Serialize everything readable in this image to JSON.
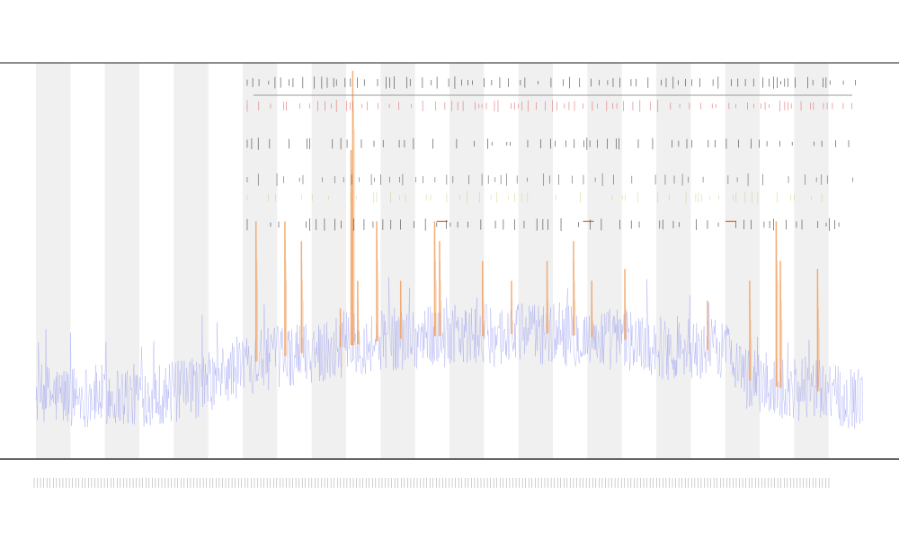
{
  "chart_data": {
    "type": "line",
    "title": "",
    "subtitle_lines": [
      "",
      ""
    ],
    "xlabel": "",
    "ylabel": "",
    "xlim": [
      0,
      1000
    ],
    "ylim": [
      0,
      100
    ],
    "grid": false,
    "legend": "top-left",
    "band_count": 12,
    "series": [
      {
        "role": "background-signal",
        "color": "#8a8ff0",
        "baseline": [
          [
            0,
            16
          ],
          [
            60,
            16
          ],
          [
            120,
            16
          ],
          [
            180,
            17
          ],
          [
            220,
            20
          ],
          [
            250,
            24
          ],
          [
            300,
            26
          ],
          [
            360,
            28
          ],
          [
            420,
            30
          ],
          [
            480,
            31
          ],
          [
            540,
            31
          ],
          [
            600,
            32
          ],
          [
            660,
            31
          ],
          [
            720,
            30
          ],
          [
            760,
            28
          ],
          [
            790,
            27
          ],
          [
            830,
            28
          ],
          [
            845,
            26
          ],
          [
            860,
            20
          ],
          [
            900,
            18
          ],
          [
            950,
            17
          ],
          [
            1000,
            15
          ]
        ],
        "noise": 8
      },
      {
        "role": "spikes",
        "color": "#f0a060",
        "peaks": [
          [
            266,
            60
          ],
          [
            301,
            60
          ],
          [
            321,
            55
          ],
          [
            368,
            38
          ],
          [
            381,
            78
          ],
          [
            383,
            98
          ],
          [
            389,
            45
          ],
          [
            412,
            60
          ],
          [
            441,
            45
          ],
          [
            482,
            60
          ],
          [
            488,
            55
          ],
          [
            540,
            50
          ],
          [
            575,
            45
          ],
          [
            618,
            50
          ],
          [
            650,
            55
          ],
          [
            672,
            45
          ],
          [
            712,
            48
          ],
          [
            812,
            40
          ],
          [
            863,
            45
          ],
          [
            895,
            60
          ],
          [
            900,
            50
          ],
          [
            945,
            48
          ]
        ]
      }
    ],
    "event_rows": [
      {
        "label": "",
        "color": "#333333"
      },
      {
        "label": "",
        "color": "#e06666"
      },
      {
        "label": "",
        "color": "#333333"
      },
      {
        "label": "",
        "color": "#555555"
      },
      {
        "label": "",
        "color": "#c8b84a"
      },
      {
        "label": "",
        "color": "#333333"
      }
    ],
    "highlight_markers": [
      {
        "x": 840,
        "y": 60,
        "color": "#f07020"
      },
      {
        "x": 668,
        "y": 60,
        "color": "#f07020"
      },
      {
        "x": 491,
        "y": 60,
        "color": "#f07020"
      }
    ]
  },
  "colors": {
    "axis": "#333333",
    "band": "#f0f0f0",
    "separator": "#999999"
  }
}
